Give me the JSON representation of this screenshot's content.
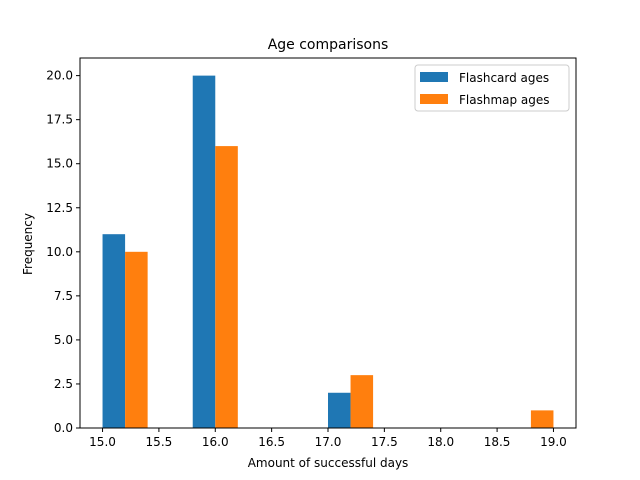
{
  "chart_data": {
    "type": "bar",
    "title": "Age comparisons",
    "xlabel": "Amount of successful days",
    "ylabel": "Frequency",
    "xlim": [
      14.8,
      19.2
    ],
    "ylim": [
      0,
      21
    ],
    "xticks": [
      15.0,
      15.5,
      16.0,
      16.5,
      17.0,
      17.5,
      18.0,
      18.5,
      19.0
    ],
    "xtick_labels": [
      "15.0",
      "15.5",
      "16.0",
      "16.5",
      "17.0",
      "17.5",
      "18.0",
      "18.5",
      "19.0"
    ],
    "yticks": [
      0,
      2.5,
      5,
      7.5,
      10,
      12.5,
      15,
      17.5,
      20
    ],
    "ytick_labels": [
      "0.0",
      "2.5",
      "5.0",
      "7.5",
      "10.0",
      "12.5",
      "15.0",
      "17.5",
      "20.0"
    ],
    "grid": false,
    "legend_position": "top-right",
    "bar_width": 0.2,
    "series": [
      {
        "name": "Flashcard ages",
        "color": "#1f77b4",
        "bars": [
          {
            "x_start": 15.0,
            "value": 11
          },
          {
            "x_start": 15.8,
            "value": 20
          },
          {
            "x_start": 17.0,
            "value": 2
          }
        ]
      },
      {
        "name": "Flashmap ages",
        "color": "#ff7f0e",
        "bars": [
          {
            "x_start": 15.2,
            "value": 10
          },
          {
            "x_start": 16.0,
            "value": 16
          },
          {
            "x_start": 17.2,
            "value": 3
          },
          {
            "x_start": 18.8,
            "value": 1
          }
        ]
      }
    ]
  }
}
